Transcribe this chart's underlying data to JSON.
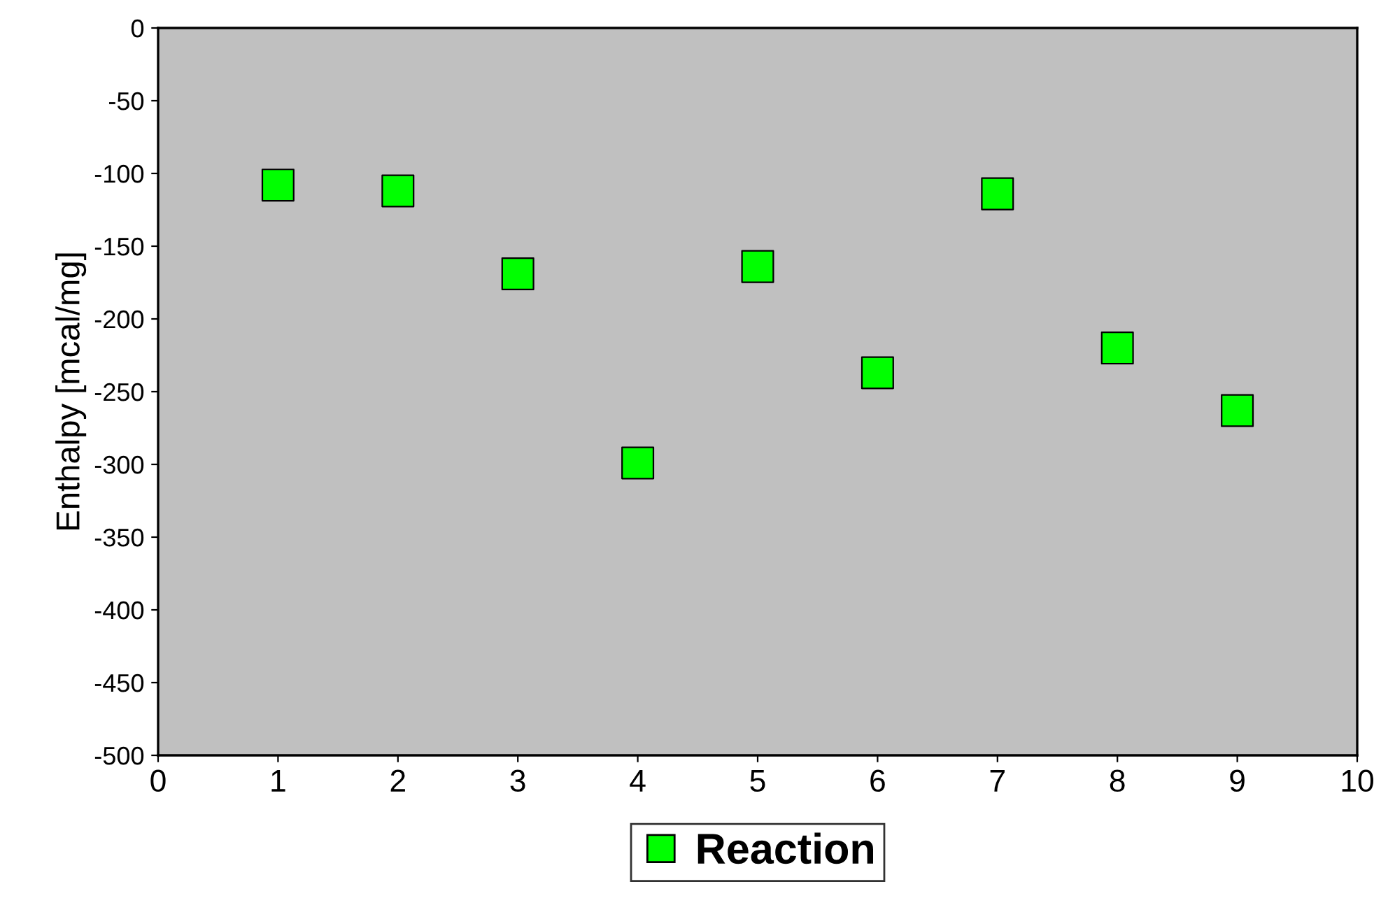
{
  "chart_data": {
    "type": "scatter",
    "ylabel": "Enthalpy [mcal/mg]",
    "x": [
      1,
      2,
      3,
      4,
      5,
      6,
      7,
      8,
      9
    ],
    "series": [
      {
        "name": "Reaction",
        "color": "#00ff00",
        "values": [
          -108,
          -112,
          -169,
          -299,
          -164,
          -237,
          -114,
          -220,
          -263
        ]
      }
    ],
    "xlim": [
      0,
      10
    ],
    "xticks": [
      0,
      1,
      2,
      3,
      4,
      5,
      6,
      7,
      8,
      9,
      10
    ],
    "ylim": [
      -500,
      0
    ],
    "yticks": [
      -500,
      -450,
      -400,
      -350,
      -300,
      -250,
      -200,
      -150,
      -100,
      -50,
      0
    ],
    "marker": "square",
    "grid": false,
    "legend": "bottom"
  }
}
